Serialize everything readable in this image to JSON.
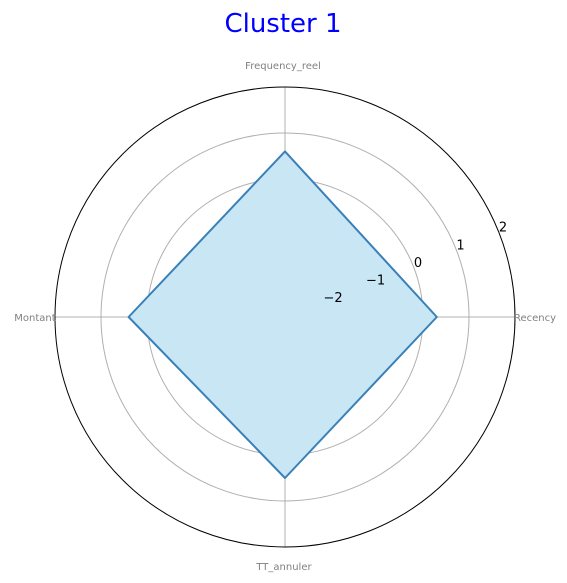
{
  "chart_data": {
    "type": "radar",
    "title": "Cluster 1",
    "axes": [
      "Recency",
      "Frequency_reel",
      "Montant",
      "TT_annuler"
    ],
    "series": [
      {
        "values": [
          0.3,
          0.6,
          0.4,
          0.5
        ]
      }
    ],
    "rlim": [
      -3,
      2
    ],
    "ticks": [
      -2,
      -1,
      0,
      1,
      2
    ],
    "tick_labels": [
      "−2",
      "−1",
      "0",
      "1",
      "2"
    ],
    "grid": true,
    "colors": {
      "title": "#0000ff",
      "line": "#3a80b8",
      "fill": "#c8e6f4",
      "grid": "#b0b0b0",
      "spine": "#000000",
      "axis_label": "#808080"
    }
  }
}
